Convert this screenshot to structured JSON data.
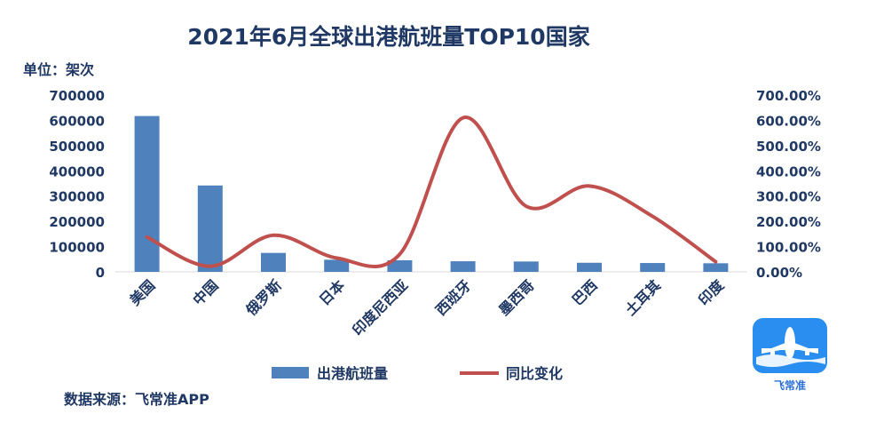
{
  "chart_data": {
    "type": "bar",
    "title": "2021年6月全球出港航班量TOP10国家",
    "unit_label": "单位：架次",
    "categories": [
      "美国",
      "中国",
      "俄罗斯",
      "日本",
      "印度尼西亚",
      "西班牙",
      "墨西哥",
      "巴西",
      "土耳其",
      "印度"
    ],
    "series": [
      {
        "name": "出港航班量",
        "type": "bar",
        "axis": "left",
        "color": "#4f81bd",
        "values": [
          617000,
          342000,
          75000,
          48000,
          46000,
          42000,
          41000,
          36000,
          35000,
          34000
        ]
      },
      {
        "name": "同比变化",
        "type": "line",
        "axis": "right",
        "color": "#c0504d",
        "values": [
          1.38,
          0.22,
          1.45,
          0.55,
          0.7,
          6.1,
          2.6,
          3.4,
          2.2,
          0.4
        ]
      }
    ],
    "ylim_left": [
      0,
      700000
    ],
    "yticks_left": [
      "0",
      "100000",
      "200000",
      "300000",
      "400000",
      "500000",
      "600000",
      "700000"
    ],
    "ylim_right": [
      0,
      7
    ],
    "yticks_right": [
      "0.00%",
      "100.00%",
      "200.00%",
      "300.00%",
      "400.00%",
      "500.00%",
      "600.00%",
      "700.00%"
    ],
    "legend_position": "bottom",
    "grid": false
  },
  "source": "数据来源：飞常准APP",
  "logo": {
    "text": "飞常准",
    "icon": "airplane-icon",
    "color": "#2a8ef0"
  }
}
